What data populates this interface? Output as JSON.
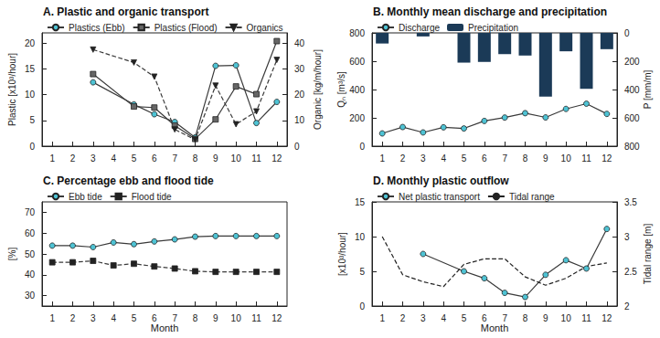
{
  "chart_data": [
    {
      "type": "line",
      "title": "A. Plastic and organic transport",
      "y_label": "Plastic [x10³/hour]",
      "y2_label": "Organic [kg/m/hour]",
      "xlim": [
        0.5,
        12.5
      ],
      "xticks": [
        1,
        2,
        3,
        4,
        5,
        6,
        7,
        8,
        9,
        10,
        11,
        12
      ],
      "ylim": [
        0,
        22
      ],
      "yticks": [
        0,
        5,
        10,
        15,
        20
      ],
      "y2lim": [
        0,
        44
      ],
      "y2ticks": [
        0,
        10,
        20,
        30,
        40
      ],
      "grid": false,
      "legend": "top-left",
      "series": [
        {
          "name": "Plastics (Ebb)",
          "color": "#4ec3d4",
          "marker": "circle",
          "line_style": "solid",
          "x": [
            3,
            5,
            6,
            7,
            8,
            9,
            10,
            11,
            12
          ],
          "values": [
            12.4,
            8.1,
            6.2,
            4.7,
            1.7,
            15.6,
            15.7,
            4.5,
            8.6
          ]
        },
        {
          "name": "Plastics (Flood)",
          "color": "#666666",
          "marker": "square",
          "line_style": "solid",
          "x": [
            3,
            5,
            6,
            7,
            8,
            9,
            10,
            11,
            12
          ],
          "values": [
            14.0,
            7.7,
            7.5,
            4.0,
            1.4,
            5.2,
            11.6,
            10.1,
            20.4
          ]
        },
        {
          "name": "Organics",
          "color": "#222222",
          "marker": "triangle-down",
          "line_style": "dashed",
          "axis": "y2",
          "x": [
            3,
            5,
            6,
            7,
            8,
            9,
            10,
            11,
            12
          ],
          "values": [
            37.5,
            32.5,
            27,
            6.5,
            2.5,
            23.5,
            8.5,
            13.5,
            33.5
          ]
        }
      ]
    },
    {
      "type": "line",
      "title": "B. Monthly mean discharge and precipitation",
      "y_label": "Qₙ [m³/s]",
      "y2_label": "P [mm/m]",
      "xlim": [
        0.5,
        12.5
      ],
      "xticks": [
        1,
        2,
        3,
        4,
        5,
        6,
        7,
        8,
        9,
        10,
        11,
        12
      ],
      "ylim": [
        0,
        800
      ],
      "yticks": [
        0,
        200,
        400,
        600,
        800
      ],
      "y2lim": [
        800,
        0
      ],
      "y2ticks": [
        0,
        200,
        400,
        600,
        800
      ],
      "grid": false,
      "legend": "top-left",
      "series": [
        {
          "name": "Discharge",
          "color": "#4ec3d4",
          "marker": "circle",
          "line_style": "solid",
          "x": [
            1,
            2,
            3,
            4,
            5,
            6,
            7,
            8,
            9,
            10,
            11,
            12
          ],
          "values": [
            90,
            135,
            97,
            133,
            125,
            178,
            202,
            233,
            203,
            263,
            300,
            228
          ]
        },
        {
          "name": "Precipitation",
          "color": "#1b3a57",
          "type": "bar",
          "axis": "y2",
          "x": [
            1,
            3,
            5,
            6,
            7,
            8,
            9,
            10,
            11,
            12
          ],
          "values": [
            75,
            25,
            210,
            205,
            150,
            160,
            450,
            130,
            395,
            115
          ]
        }
      ]
    },
    {
      "type": "line",
      "title": "C. Percentage ebb and flood tide",
      "x_label": "Month",
      "y_label": "[%]",
      "xlim": [
        0.5,
        12.5
      ],
      "xticks": [
        1,
        2,
        3,
        4,
        5,
        6,
        7,
        8,
        9,
        10,
        11,
        12
      ],
      "ylim": [
        25,
        75
      ],
      "yticks": [
        30,
        40,
        50,
        60,
        70
      ],
      "grid": false,
      "legend": "top-left",
      "series": [
        {
          "name": "Ebb tide",
          "color": "#4ec3d4",
          "marker": "circle",
          "line_style": "solid",
          "x": [
            1,
            2,
            3,
            4,
            5,
            6,
            7,
            8,
            9,
            10,
            11,
            12
          ],
          "values": [
            54,
            54,
            53.3,
            55.5,
            54.7,
            56,
            57,
            58.3,
            58.6,
            58.6,
            58.6,
            58.6
          ]
        },
        {
          "name": "Flood tide",
          "color": "#222222",
          "marker": "square",
          "line_style": "dashed",
          "x": [
            1,
            2,
            3,
            4,
            5,
            6,
            7,
            8,
            9,
            10,
            11,
            12
          ],
          "values": [
            46,
            46,
            46.7,
            44.5,
            45.3,
            44,
            43,
            41.7,
            41.4,
            41.4,
            41.4,
            41.4
          ]
        }
      ]
    },
    {
      "type": "line",
      "title": "D. Monthly plastic outflow",
      "x_label": "Month",
      "y_label": "[x10³/hour]",
      "y2_label": "Tidal range [m]",
      "xlim": [
        0.5,
        12.5
      ],
      "xticks": [
        1,
        2,
        3,
        4,
        5,
        6,
        7,
        8,
        9,
        10,
        11,
        12
      ],
      "ylim": [
        0,
        15
      ],
      "yticks": [
        0,
        5,
        10,
        15
      ],
      "y2lim": [
        2,
        3.5
      ],
      "y2ticks": [
        2,
        2.5,
        3,
        3.5
      ],
      "grid": false,
      "legend": "top-left",
      "series": [
        {
          "name": "Net plastic transport",
          "color": "#4ec3d4",
          "marker": "circle",
          "line_style": "solid",
          "x": [
            3,
            5,
            6,
            7,
            8,
            9,
            10,
            11,
            12
          ],
          "values": [
            7.5,
            5.0,
            4.0,
            1.9,
            1.3,
            4.5,
            6.6,
            5.4,
            11.1
          ]
        },
        {
          "name": "Tidal range",
          "color": "#222222",
          "marker": "none",
          "line_style": "dashed",
          "axis": "y2",
          "x": [
            1,
            2,
            3,
            4,
            5,
            6,
            7,
            8,
            9,
            10,
            11,
            12
          ],
          "values": [
            3.0,
            2.45,
            2.35,
            2.28,
            2.6,
            2.68,
            2.68,
            2.42,
            2.3,
            2.4,
            2.57,
            2.62
          ]
        }
      ]
    }
  ]
}
